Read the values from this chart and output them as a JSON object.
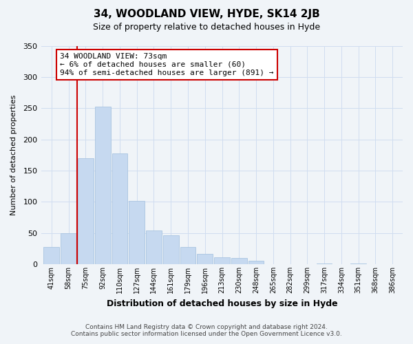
{
  "title": "34, WOODLAND VIEW, HYDE, SK14 2JB",
  "subtitle": "Size of property relative to detached houses in Hyde",
  "xlabel": "Distribution of detached houses by size in Hyde",
  "ylabel": "Number of detached properties",
  "bar_color": "#c6d9f0",
  "bar_edge_color": "#a8c4e0",
  "bin_labels": [
    "41sqm",
    "58sqm",
    "75sqm",
    "92sqm",
    "110sqm",
    "127sqm",
    "144sqm",
    "161sqm",
    "179sqm",
    "196sqm",
    "213sqm",
    "230sqm",
    "248sqm",
    "265sqm",
    "282sqm",
    "299sqm",
    "317sqm",
    "334sqm",
    "351sqm",
    "368sqm",
    "386sqm"
  ],
  "bar_heights": [
    28,
    50,
    170,
    252,
    178,
    101,
    54,
    46,
    28,
    16,
    11,
    10,
    6,
    0,
    0,
    0,
    1,
    0,
    1,
    0,
    0
  ],
  "ylim": [
    0,
    350
  ],
  "yticks": [
    0,
    50,
    100,
    150,
    200,
    250,
    300,
    350
  ],
  "vline_x_index": 2,
  "property_line_label": "34 WOODLAND VIEW: 73sqm",
  "annotation_line1": "← 6% of detached houses are smaller (60)",
  "annotation_line2": "94% of semi-detached houses are larger (891) →",
  "annotation_box_color": "#ffffff",
  "annotation_box_edge": "#cc0000",
  "vline_color": "#cc0000",
  "footer_line1": "Contains HM Land Registry data © Crown copyright and database right 2024.",
  "footer_line2": "Contains public sector information licensed under the Open Government Licence v3.0.",
  "grid_color": "#d0ddf0",
  "background_color": "#f0f4f8",
  "title_fontsize": 11,
  "subtitle_fontsize": 9
}
